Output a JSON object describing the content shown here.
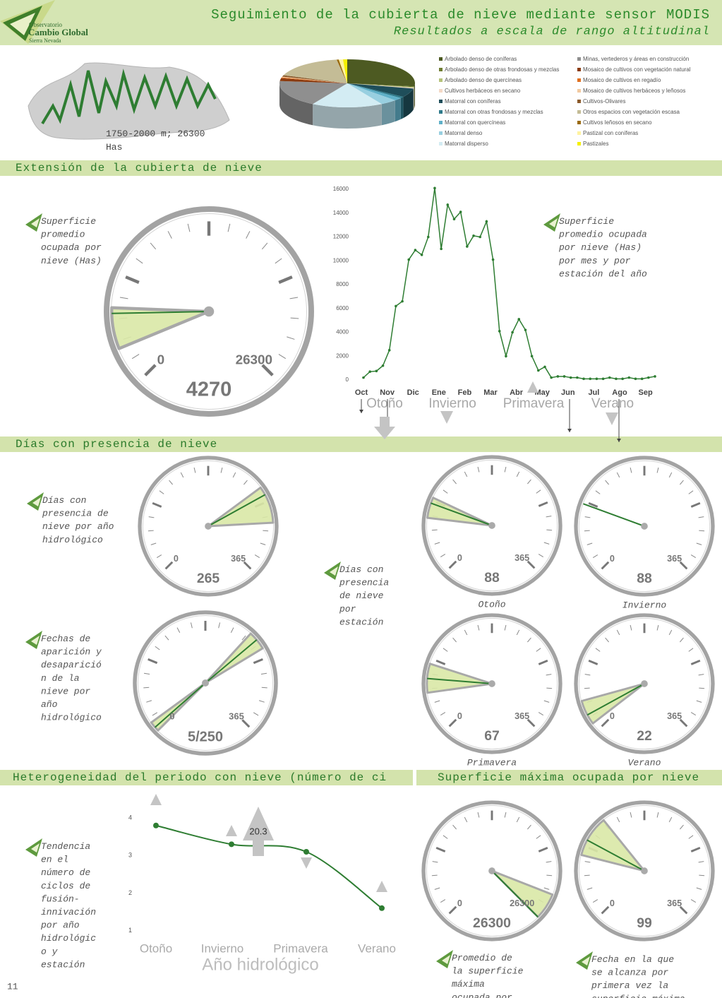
{
  "header": {
    "title": "Seguimiento de la cubierta de nieve mediante sensor MODIS",
    "subtitle": "Resultados a escala de rango altitudinal",
    "logo": [
      "Observatorio",
      "Cambio Global",
      "Sierra Nevada"
    ]
  },
  "map_label": "1750-2000 m; 26300 Has",
  "land_cover": {
    "type": "pie",
    "categories": [
      "Arbolado denso de coníferas",
      "Arbolado denso de otras frondosas y mezclas",
      "Arbolado denso de quercíneas",
      "Cultivos herbáceos en secano",
      "Matorral con coníferas",
      "Matorral con otras frondosas y mezclas",
      "Matorral con quercíneas",
      "Matorral denso",
      "Matorral disperso",
      "Minas, vertederos y áreas en construcción",
      "Mosaico de cultivos con vegetación natural",
      "Mosaico de cultivos en regadío",
      "Mosaico de cultivos herbáceos y leñosos",
      "Cultivos-Olivares",
      "Otros espacios con vegetación escasa",
      "Cultivos  leñosos en secano",
      "Pastizal con coníferas",
      "Pastizales"
    ],
    "colors": [
      "#4d5a22",
      "#6f7d32",
      "#b5c27a",
      "#f4d9c6",
      "#1f4e5a",
      "#2e7a8a",
      "#5fb0c8",
      "#98cfe0",
      "#d3ecf3",
      "#8f8f8f",
      "#8a3b10",
      "#e07020",
      "#f2c9a0",
      "#8b5a2b",
      "#c4bc96",
      "#9a6a10",
      "#fff3a0",
      "#f5f000"
    ],
    "values": [
      27,
      0.5,
      0.5,
      0.5,
      6,
      1,
      2,
      4,
      17,
      18,
      2,
      0.5,
      0.5,
      1,
      17,
      0.5,
      1,
      1
    ]
  },
  "sections": [
    "Extensión de la cubierta de nieve",
    "Días con presencia de nieve",
    "Heterogeneidad del periodo con nieve (número de ci",
    "Superficie máxima ocupada por nieve"
  ],
  "notes": [
    "Superficie promedio ocupada por nieve (Has)",
    "Superficie promedio ocupada por nieve (Has) por mes y por estación del año",
    "Días con presencia de nieve por año hidrológico",
    "Días con presencia de nieve por estación",
    "Fechas de aparición y desaparición de la nieve por año hidrológico",
    "Tendencia en el número de ciclos de fusión-innivación por año hidrológico y estación",
    "Promedio de la superficie máxima ocupada por",
    "Fecha en la que se alcanza por primera vez la superficie máxima"
  ],
  "gauges": [
    {
      "scale": [
        0,
        26300
      ],
      "values": [
        4270
      ],
      "ranges": [
        [
          2200,
          4600
        ]
      ]
    },
    {
      "scale": [
        0,
        365
      ],
      "values": [
        265
      ],
      "ranges": [
        [
          255,
          300
        ]
      ]
    },
    {
      "scale": [
        0,
        365
      ],
      "values": [
        5,
        250
      ],
      "value_label": "5/250",
      "ranges": [
        [
          0,
          12
        ],
        [
          240,
          262
        ]
      ]
    },
    {
      "scale": [
        0,
        365
      ],
      "values": [
        88
      ],
      "ranges": [
        [
          70,
          95
        ]
      ],
      "caption": "Otoño"
    },
    {
      "scale": [
        0,
        365
      ],
      "values": [
        88
      ],
      "caption": "Invierno"
    },
    {
      "scale": [
        0,
        365
      ],
      "values": [
        67
      ],
      "ranges": [
        [
          50,
          85
        ]
      ],
      "caption": "Primavera"
    },
    {
      "scale": [
        0,
        365
      ],
      "values": [
        22
      ],
      "ranges": [
        [
          10,
          40
        ]
      ],
      "caption": "Verano"
    },
    {
      "scale": [
        0,
        26300
      ],
      "values": [
        26300
      ],
      "ranges": [
        [
          24000,
          26300
        ]
      ]
    },
    {
      "scale": [
        0,
        365
      ],
      "values": [
        99
      ],
      "ranges": [
        [
          80,
          130
        ]
      ]
    }
  ],
  "snow_extent": {
    "type": "line",
    "categories": [
      "Oct",
      "Nov",
      "Dic",
      "Ene",
      "Feb",
      "Mar",
      "Abr",
      "May",
      "Jun",
      "Jul",
      "Ago",
      "Sep"
    ],
    "values": [
      200,
      700,
      750,
      1200,
      2500,
      6200,
      6600,
      10100,
      10900,
      10500,
      12000,
      16100,
      11000,
      14700,
      13500,
      14100,
      11200,
      12100,
      12000,
      13300,
      10100,
      4100,
      2000,
      4000,
      5100,
      4200,
      2000,
      800,
      1100,
      200,
      300,
      300,
      200,
      200,
      100,
      100,
      100,
      100,
      200,
      100,
      100,
      200,
      100,
      100,
      200,
      300
    ],
    "color": "#2e7d32",
    "ylim": [
      0,
      16000
    ],
    "yticks": [
      0,
      2000,
      4000,
      6000,
      8000,
      10000,
      12000,
      14000,
      16000
    ],
    "seasons": [
      "Otoño",
      "Invierno",
      "Primavera",
      "Verano"
    ]
  },
  "heterogeneity": {
    "type": "line",
    "categories": [
      "Otoño",
      "Invierno",
      "Primavera",
      "Verano"
    ],
    "values": [
      3.8,
      3.3,
      3.1,
      1.6
    ],
    "color": "#2e7d32",
    "ylim": [
      0.6,
      4.5
    ],
    "yticks": [
      1,
      2,
      3,
      4
    ],
    "xlabel": "Año hidrológico",
    "annotation": "20.3"
  },
  "page_number": "11"
}
